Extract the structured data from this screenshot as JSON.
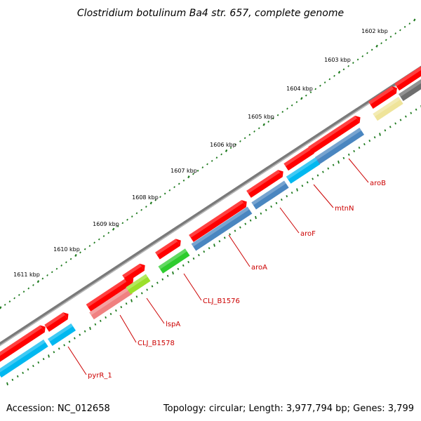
{
  "title": "Clostridium botulinum Ba4 str. 657, complete genome",
  "footer": {
    "accession": "Accession: NC_012658",
    "stats": "Topology: circular; Length: 3,977,794 bp; Genes: 3,799"
  },
  "kbp_labels": [
    "1602 kbp",
    "1603 kbp",
    "1604 kbp",
    "1605 kbp",
    "1606 kbp",
    "1607 kbp",
    "1608 kbp",
    "1609 kbp",
    "1610 kbp",
    "1611 kbp"
  ],
  "genes": [
    "aroB",
    "mtnN",
    "aroF",
    "aroA",
    "CLJ_B1576",
    "lspA",
    "CLJ_B1578",
    "pyrR_1"
  ],
  "colors": {
    "backbone": "#7a7a7a",
    "forward_feature": "#ff0000",
    "cds_blue": "#4a86c0",
    "cds_cyan": "#00b8f0",
    "cds_green": "#2ecc2e",
    "cds_lime": "#9be02a",
    "cds_pink": "#f08080",
    "cds_grey": "#6e6e6e",
    "cds_yellow": "#efe49a",
    "label": "#cc0000",
    "tick": "#1e7a1e"
  }
}
